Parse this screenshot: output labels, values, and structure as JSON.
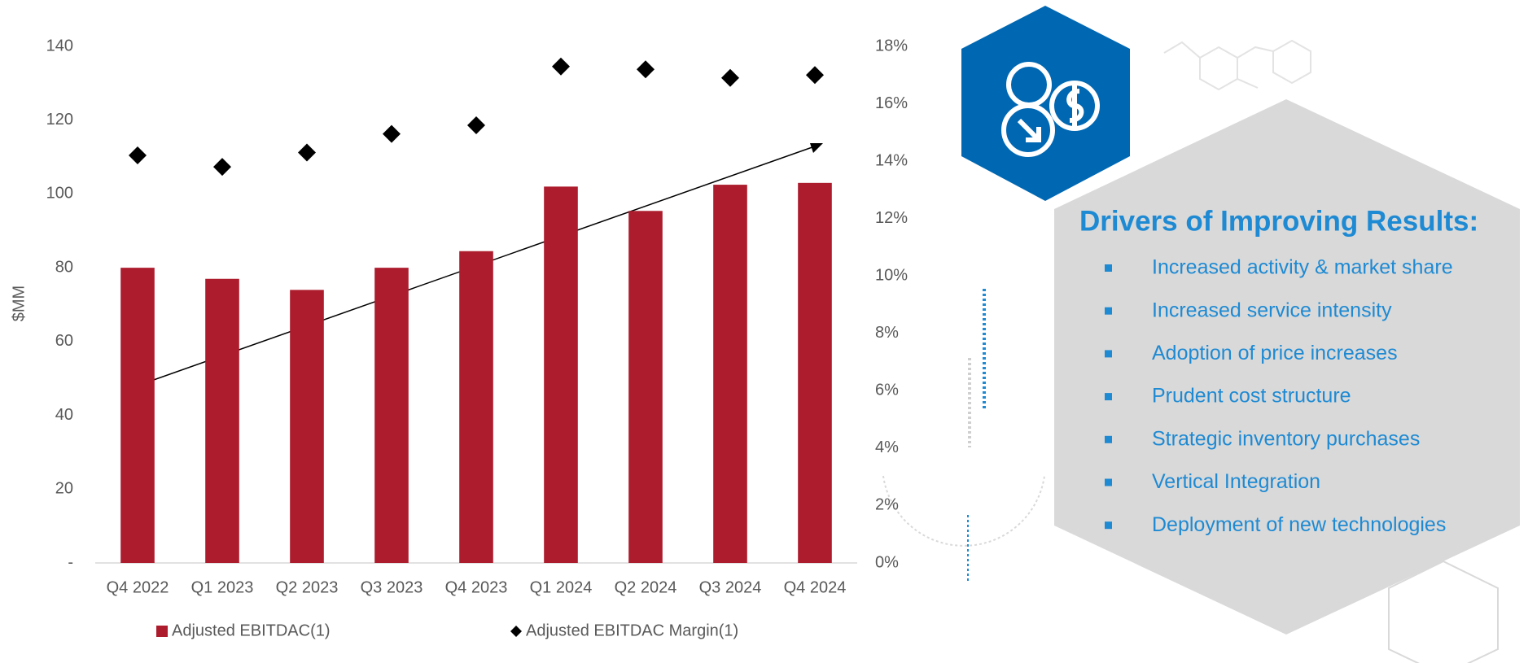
{
  "chart_data": {
    "type": "bar_scatter_combo",
    "y_label": "$MM",
    "categories": [
      "Q4 2022",
      "Q1 2023",
      "Q2 2023",
      "Q3 2023",
      "Q4 2023",
      "Q1 2024",
      "Q2 2024",
      "Q3 2024",
      "Q4 2024"
    ],
    "series": [
      {
        "name": "Adjusted EBITDAC(1)",
        "color": "#ad1c2c",
        "values": [
          80,
          77,
          74,
          80,
          84.5,
          102,
          95.4,
          102.5,
          103
        ]
      },
      {
        "name": "Adjusted EBITDAC Margin(1)",
        "color": "#000000",
        "axis": "y2",
        "values": [
          14.2,
          13.8,
          14.3,
          14.95,
          15.25,
          17.3,
          17.2,
          16.9,
          17.0
        ]
      }
    ],
    "ylim": [
      0,
      140
    ],
    "yticks": [
      {
        "value": 0,
        "label": "-"
      },
      20,
      40,
      60,
      80,
      100,
      120,
      140
    ],
    "y2lim": [
      0,
      18
    ],
    "y2ticks": [
      {
        "value": 0,
        "label": "0%"
      },
      {
        "value": 2,
        "label": "2%"
      },
      {
        "value": 4,
        "label": "4%"
      },
      {
        "value": 6,
        "label": "6%"
      },
      {
        "value": 8,
        "label": "8%"
      },
      {
        "value": 10,
        "label": "10%"
      },
      {
        "value": 12,
        "label": "12%"
      },
      {
        "value": 14,
        "label": "14%"
      },
      {
        "value": 16,
        "label": "16%"
      },
      {
        "value": 18,
        "label": "18%"
      }
    ],
    "grid": false
  },
  "panel": {
    "title": "Drivers of Improving Results:",
    "items": [
      "Increased activity & market share",
      "Increased service intensity",
      "Adoption of price increases",
      "Prudent cost structure",
      "Strategic inventory purchases",
      "Vertical Integration",
      "Deployment of new technologies"
    ]
  }
}
